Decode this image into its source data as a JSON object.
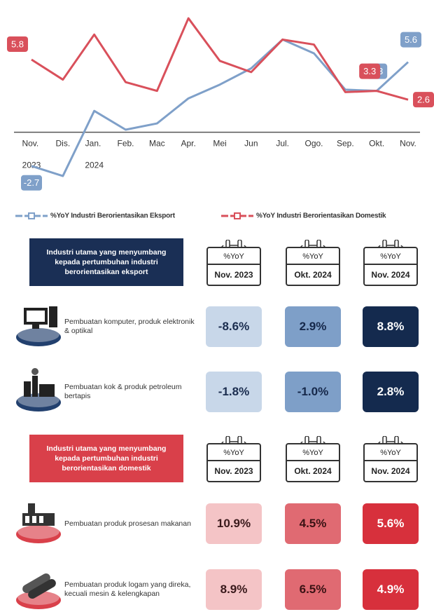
{
  "chart_data": {
    "type": "line",
    "categories": [
      "Nov. 2023",
      "Dis.",
      "Jan. 2024",
      "Feb.",
      "Mac",
      "Apr.",
      "Mei",
      "Jun",
      "Jul.",
      "Ogo.",
      "Sep.",
      "Okt.",
      "Nov."
    ],
    "series": [
      {
        "name": "%YoY Industri Berorientasikan Eksport",
        "color": "#7fa0c9",
        "values": [
          -2.7,
          -3.5,
          1.7,
          0.2,
          0.7,
          2.7,
          3.8,
          5.1,
          7.4,
          6.3,
          3.4,
          3.3,
          5.6
        ],
        "value_labels": [
          "-2.7",
          null,
          null,
          null,
          null,
          null,
          null,
          null,
          null,
          null,
          null,
          "3.3",
          "5.6"
        ]
      },
      {
        "name": "%YoY Industri Berorientasikan Domestik",
        "color": "#d9505b",
        "values": [
          5.8,
          4.2,
          7.8,
          4.0,
          3.3,
          9.1,
          5.7,
          4.8,
          7.4,
          7.0,
          3.2,
          3.3,
          2.6
        ],
        "value_labels": [
          "5.8",
          null,
          null,
          null,
          null,
          null,
          null,
          null,
          null,
          null,
          null,
          "3.3",
          "2.6"
        ]
      }
    ],
    "ylim": [
      -4,
      10
    ],
    "legend": "bottom"
  },
  "sections": [
    {
      "title": "Industri utama yang menyumbang kepada pertumbuhan industri berorientasikan eksport",
      "columns": [
        {
          "unit": "%YoY",
          "period": "Nov. 2023"
        },
        {
          "unit": "%YoY",
          "period": "Okt. 2024"
        },
        {
          "unit": "%YoY",
          "period": "Nov. 2024"
        }
      ],
      "rows": [
        {
          "label": "Pembuatan komputer, produk elektronik & optikal",
          "values": [
            "-8.6%",
            "2.9%",
            "8.8%"
          ]
        },
        {
          "label": "Pembuatan kok & produk petroleum bertapis",
          "values": [
            "-1.8%",
            "-1.0%",
            "2.8%"
          ]
        }
      ]
    },
    {
      "title": "Industri utama yang menyumbang kepada pertumbuhan industri berorientasikan domestik",
      "columns": [
        {
          "unit": "%YoY",
          "period": "Nov. 2023"
        },
        {
          "unit": "%YoY",
          "period": "Okt. 2024"
        },
        {
          "unit": "%YoY",
          "period": "Nov. 2024"
        }
      ],
      "rows": [
        {
          "label": "Pembuatan produk prosesan makanan",
          "values": [
            "10.9%",
            "4.5%",
            "5.6%"
          ]
        },
        {
          "label": "Pembuatan produk logam yang direka, kecuali mesin & kelengkapan",
          "values": [
            "8.9%",
            "6.5%",
            "4.9%"
          ]
        }
      ]
    }
  ]
}
